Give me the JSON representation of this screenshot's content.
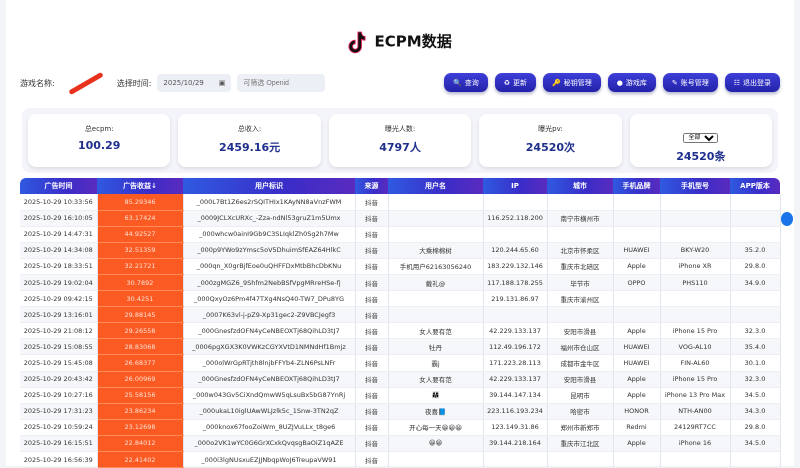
{
  "header": {
    "title": "ECPM数据"
  },
  "filters": {
    "game_label": "游戏名称:",
    "time_label": "选择时间:",
    "date_value": "2025/10/29",
    "openid_placeholder": "可筛选 Openid"
  },
  "buttons": [
    {
      "icon": "search-icon",
      "label": "查询"
    },
    {
      "icon": "refresh-icon",
      "label": "更新"
    },
    {
      "icon": "key-icon",
      "label": "秘钥管理"
    },
    {
      "icon": "game-icon",
      "label": "游戏库"
    },
    {
      "icon": "account-icon",
      "label": "账号管理"
    },
    {
      "icon": "logout-icon",
      "label": "退出登录"
    }
  ],
  "stats": [
    {
      "label": "总ecpm:",
      "value": "100.29"
    },
    {
      "label": "总收入:",
      "value": "2459.16元"
    },
    {
      "label": "曝光人数:",
      "value": "4797人"
    },
    {
      "label": "曝光pv:",
      "value": "24520次"
    },
    {
      "select": "全部",
      "value": "24520条"
    }
  ],
  "table": {
    "columns": [
      "广告时间",
      "广告收益↓",
      "用户标识",
      "来源",
      "用户名",
      "IP",
      "城市",
      "手机品牌",
      "手机型号",
      "APP版本"
    ],
    "rows": [
      [
        "2025-10-29 10:33:56",
        "85.29346",
        "_000L7Bt1Z6es2rSQITHIx1KAyNN8aVnzFWM",
        "抖音",
        "",
        "",
        "",
        "",
        "",
        ""
      ],
      [
        "2025-10-29 16:10:05",
        "63.17424",
        "_0009JCLXcURXc_-Zza-ndNl53gruZ1m5Umx",
        "抖音",
        "",
        "116.252.118.200",
        "南宁市横州市",
        "",
        "",
        ""
      ],
      [
        "2025-10-29 14:47:31",
        "44.92527",
        "_000whcw0ainI9Gb9C3SLIqklZh0Sg2h7Mw",
        "抖音",
        "",
        "",
        "",
        "",
        "",
        ""
      ],
      [
        "2025-10-29 14:34:08",
        "32.51359",
        "_000p9YWo9zYmsc5oV5DhuimSfEAZ64HlkC",
        "抖音",
        "大乘棉棉树",
        "120.244.65.60",
        "北京市怀柔区",
        "HUAWEI",
        "BKY-W20",
        "35.2.0"
      ],
      [
        "2025-10-29 18:33:51",
        "32.21721",
        "_000qn_X0grBjfEoe0uQHFFDxMtbBhcDbKNu",
        "抖音",
        "手机用户62163056240",
        "183.229.132.146",
        "重庆市北碚区",
        "Apple",
        "iPhone XR",
        "29.8.0"
      ],
      [
        "2025-10-29 19:02:04",
        "30.7892",
        "_000zgMGZ6_9Shfm2NebBSfVpgMRreHSe-fj",
        "抖音",
        "戴礼@",
        "117.188.178.255",
        "毕节市",
        "OPPO",
        "PHS110",
        "34.9.0"
      ],
      [
        "2025-10-29 09:42:15",
        "30.4251",
        "_000QxyOz6Pm4f47TXg4NsQ40-TW7_DPu8YG",
        "抖音",
        "",
        "219.131.86.97",
        "重庆市渝州区",
        "",
        "",
        ""
      ],
      [
        "2025-10-29 13:16:01",
        "29.88145",
        "_0007K63vl-j-pZ9-Xp31gec2-Z9VBCJegf3",
        "抖音",
        "",
        "",
        "",
        "",
        "",
        ""
      ],
      [
        "2025-10-29 21:08:12",
        "29.26558",
        "_000GnesfzdOFN4yCeNBEOXTj68QihLD3tJ7",
        "抖音",
        "女人要有范",
        "42.229.133.137",
        "安阳市滑县",
        "Apple",
        "iPhone 15 Pro",
        "32.3.0"
      ],
      [
        "2025-10-29 15:08:55",
        "28.83068",
        "_0006pgXGX3K0VWKzCGYXVtD1NMNdHf1Bmjz",
        "抖音",
        "牡丹",
        "112.49.196.172",
        "福州市仓山区",
        "HUAWEI",
        "VOG-AL10",
        "35.4.0"
      ],
      [
        "2025-10-29 15:45:08",
        "26.68377",
        "_000olWrGpRTjth8lnjbFFYb4-ZLN6PsLNFr",
        "抖音",
        "霸j",
        "171.223.28.113",
        "成都市金牛区",
        "HUAWEI",
        "FIN-AL60",
        "30.1.0"
      ],
      [
        "2025-10-29 20:43:42",
        "26.00969",
        "_000GnesfzdOFN4yCeNBEOXTj68QihLD3tJ7",
        "抖音",
        "女人要有范",
        "42.229.133.137",
        "安阳市滑县",
        "Apple",
        "iPhone 15 Pro",
        "32.3.0"
      ],
      [
        "2025-10-29 10:27:16",
        "25.58156",
        "_000w043Gv5CiXndQmwW5qLsuBx5bG87YnRj",
        "抖音",
        "👨‍👩‍👧",
        "39.144.147.134",
        "昆明市",
        "Apple",
        "iPhone 13 Pro Max",
        "34.5.0"
      ],
      [
        "2025-10-29 17:31:23",
        "23.86234",
        "_000ukaL10iglUAwWLJzlk5c_1Snw-3TN2qZ",
        "抖音",
        "夜喜📘",
        "223.116.193.234",
        "哈密市",
        "HONOR",
        "NTH-AN00",
        "34.3.0"
      ],
      [
        "2025-10-29 10:59:24",
        "23.12698",
        "_000knox67fooZoiWm_8UZJVuLLx_t8ge6",
        "抖音",
        "开心每一天😀😀😀",
        "123.149.31.86",
        "郑州市新郑市",
        "Redmi",
        "24129RT7CC",
        "29.8.0"
      ],
      [
        "2025-10-29 16:15:51",
        "22.84012",
        "_000o2VK1wYC0G6GrXCxkQvqsgBaOiZ1qAZE",
        "抖音",
        "😀😀",
        "39.144.218.164",
        "重庆市江北区",
        "Apple",
        "iPhone 16",
        "34.5.0"
      ],
      [
        "2025-10-29 16:56:39",
        "22.41402",
        "_000i3lgNUsxuEZJJNbqpWoJ6TreupaVW91",
        "抖音",
        "",
        "",
        "",
        "",
        "",
        ""
      ]
    ]
  },
  "colors": {
    "accent": "#2f3fd0",
    "revenue": "#fb5a22"
  }
}
